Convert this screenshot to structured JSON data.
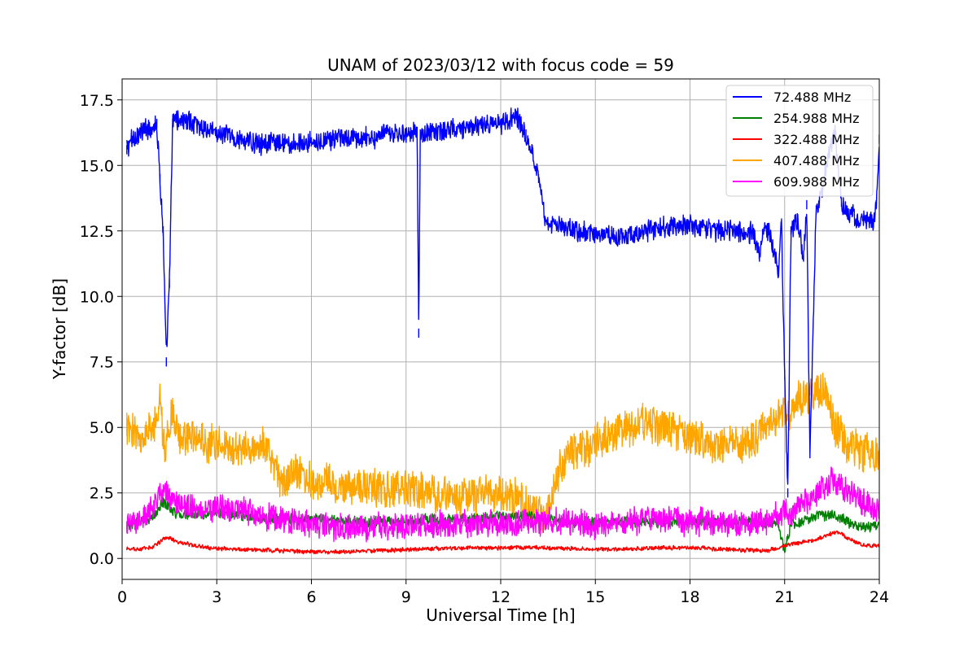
{
  "chart_data": {
    "type": "line",
    "title": "UNAM of 2023/03/12 with focus code = 59",
    "xlabel": "Universal Time [h]",
    "ylabel": "Y-factor [dB]",
    "xlim": [
      0,
      24
    ],
    "ylim": [
      -0.8,
      18.3
    ],
    "xticks": [
      0,
      3,
      6,
      9,
      12,
      15,
      18,
      21,
      24
    ],
    "yticks": [
      0.0,
      2.5,
      5.0,
      7.5,
      10.0,
      12.5,
      15.0,
      17.5
    ],
    "ytick_labels": [
      "0.0",
      "2.5",
      "5.0",
      "7.5",
      "10.0",
      "12.5",
      "15.0",
      "17.5"
    ],
    "grid": true,
    "legend_position": "top-right",
    "series": [
      {
        "name": " 72.488 MHz",
        "color": "#0000ff",
        "noise": 0.35,
        "x": [
          0.15,
          0.3,
          0.8,
          1.1,
          1.2,
          1.3,
          1.4,
          1.5,
          1.6,
          1.7,
          2.5,
          3.0,
          4.0,
          5.0,
          6.0,
          7.0,
          8.0,
          9.0,
          9.35,
          9.4,
          9.45,
          10.0,
          11.0,
          12.0,
          12.5,
          12.8,
          13.0,
          13.2,
          13.4,
          14.0,
          15.0,
          16.0,
          17.0,
          18.0,
          19.0,
          20.0,
          20.2,
          20.3,
          20.5,
          20.8,
          20.9,
          21.0,
          21.1,
          21.2,
          21.4,
          21.6,
          21.7,
          21.8,
          22.0,
          22.2,
          22.4,
          22.6,
          22.8,
          23.0,
          23.5,
          23.8,
          23.9,
          24.0
        ],
        "y": [
          15.6,
          16.0,
          16.4,
          16.6,
          14.5,
          12.5,
          7.5,
          10.5,
          16.6,
          16.8,
          16.5,
          16.2,
          15.9,
          15.8,
          15.9,
          16.0,
          16.1,
          16.2,
          16.3,
          8.6,
          16.2,
          16.3,
          16.5,
          16.6,
          16.9,
          16.2,
          15.6,
          14.5,
          12.9,
          12.6,
          12.4,
          12.3,
          12.6,
          12.7,
          12.5,
          12.4,
          11.5,
          12.4,
          12.5,
          11.0,
          12.8,
          7.0,
          2.5,
          12.5,
          13.0,
          11.5,
          13.5,
          4.0,
          13.3,
          14.0,
          15.5,
          16.2,
          13.6,
          13.1,
          12.9,
          12.8,
          13.5,
          16.0
        ]
      },
      {
        "name": "254.988 MHz",
        "color": "#008000",
        "noise": 0.18,
        "x": [
          0.15,
          0.5,
          1.0,
          1.3,
          1.6,
          2.0,
          3.0,
          4.0,
          5.0,
          6.0,
          7.0,
          8.0,
          9.0,
          10.0,
          11.0,
          12.0,
          13.0,
          14.0,
          15.0,
          16.0,
          17.0,
          18.0,
          19.0,
          20.0,
          20.8,
          21.0,
          21.2,
          21.5,
          22.0,
          22.5,
          23.0,
          23.5,
          24.0
        ],
        "y": [
          1.2,
          1.4,
          1.6,
          2.2,
          1.8,
          1.7,
          1.7,
          1.6,
          1.5,
          1.5,
          1.4,
          1.4,
          1.4,
          1.5,
          1.5,
          1.6,
          1.6,
          1.4,
          1.4,
          1.4,
          1.4,
          1.4,
          1.4,
          1.4,
          1.3,
          0.3,
          1.3,
          1.4,
          1.6,
          1.7,
          1.4,
          1.2,
          1.3
        ]
      },
      {
        "name": "322.488 MHz",
        "color": "#ff0000",
        "noise": 0.07,
        "x": [
          0.15,
          0.5,
          1.0,
          1.3,
          1.5,
          1.8,
          2.5,
          3.0,
          4.0,
          5.0,
          6.0,
          7.0,
          8.0,
          9.0,
          10.0,
          11.0,
          12.0,
          13.0,
          14.0,
          15.0,
          16.0,
          17.0,
          18.0,
          19.0,
          20.0,
          20.5,
          21.0,
          21.5,
          22.0,
          22.5,
          22.7,
          23.0,
          23.5,
          24.0
        ],
        "y": [
          0.35,
          0.35,
          0.45,
          0.75,
          0.8,
          0.6,
          0.45,
          0.38,
          0.33,
          0.3,
          0.25,
          0.25,
          0.3,
          0.33,
          0.38,
          0.4,
          0.4,
          0.42,
          0.38,
          0.35,
          0.35,
          0.4,
          0.42,
          0.35,
          0.3,
          0.3,
          0.5,
          0.6,
          0.72,
          0.95,
          1.0,
          0.75,
          0.5,
          0.5
        ]
      },
      {
        "name": "407.488 MHz",
        "color": "#ffa500",
        "noise": 0.65,
        "x": [
          0.15,
          0.5,
          1.0,
          1.2,
          1.35,
          1.6,
          1.8,
          2.2,
          2.8,
          3.5,
          4.2,
          4.6,
          5.0,
          5.5,
          6.0,
          7.0,
          8.0,
          9.0,
          10.0,
          11.0,
          12.0,
          12.5,
          13.0,
          13.5,
          13.8,
          14.2,
          15.0,
          15.5,
          16.0,
          17.0,
          18.0,
          18.5,
          19.0,
          20.0,
          20.5,
          21.0,
          21.5,
          22.0,
          22.3,
          22.6,
          23.0,
          23.5,
          24.0
        ],
        "y": [
          5.0,
          4.6,
          4.9,
          6.2,
          4.0,
          5.8,
          4.6,
          4.5,
          4.5,
          4.3,
          4.2,
          4.2,
          2.8,
          3.3,
          3.0,
          2.8,
          2.7,
          2.6,
          2.4,
          2.3,
          2.5,
          2.3,
          1.8,
          1.8,
          3.2,
          4.1,
          4.3,
          4.8,
          5.0,
          5.1,
          4.6,
          4.4,
          4.3,
          4.5,
          5.0,
          5.5,
          6.0,
          6.5,
          6.2,
          5.0,
          4.3,
          4.0,
          3.9
        ]
      },
      {
        "name": "609.988 MHz",
        "color": "#ff00ff",
        "noise": 0.45,
        "x": [
          0.15,
          0.5,
          1.0,
          1.3,
          1.6,
          2.0,
          3.0,
          4.0,
          5.0,
          6.0,
          7.0,
          8.0,
          9.0,
          10.0,
          11.0,
          12.0,
          13.0,
          14.0,
          15.0,
          16.0,
          17.0,
          18.0,
          19.0,
          20.0,
          20.5,
          21.0,
          21.5,
          22.0,
          22.4,
          22.6,
          23.0,
          23.5,
          24.0
        ],
        "y": [
          1.2,
          1.5,
          2.0,
          2.6,
          2.3,
          2.0,
          1.9,
          1.8,
          1.5,
          1.3,
          1.2,
          1.2,
          1.2,
          1.3,
          1.3,
          1.3,
          1.4,
          1.4,
          1.3,
          1.4,
          1.5,
          1.4,
          1.4,
          1.3,
          1.5,
          1.7,
          2.0,
          2.4,
          2.9,
          3.0,
          2.6,
          2.1,
          1.9
        ]
      }
    ]
  }
}
